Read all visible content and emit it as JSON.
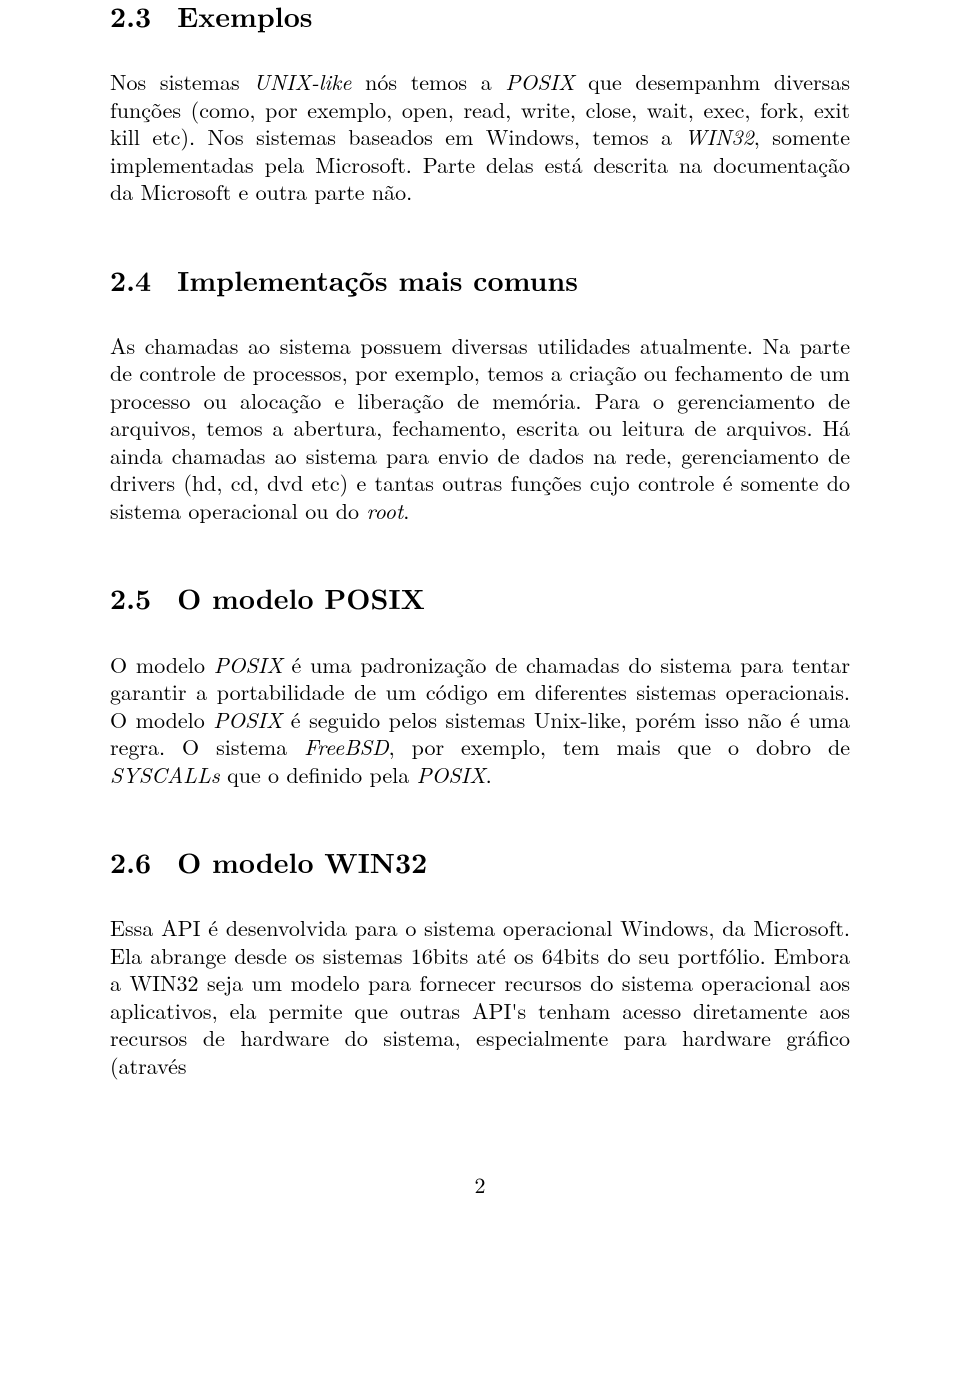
{
  "sections": {
    "s23": {
      "number": "2.3",
      "title": "Exemplos",
      "p1_a": "Nos sistemas ",
      "p1_i1": "UNIX-like",
      "p1_b": " nós temos a ",
      "p1_i2": "POSIX",
      "p1_c": " que desempanhm diversas funções (como, por exemplo, open, read, write, close, wait, exec, fork, exit kill etc). Nos sistemas baseados em Windows, temos a ",
      "p1_i3": "WIN32",
      "p1_d": ", somente implementadas pela Microsoft. Parte delas está descrita na documentação da Microsoft e outra parte não."
    },
    "s24": {
      "number": "2.4",
      "title": "Implementaçõs mais comuns",
      "p1_a": "As chamadas ao sistema possuem diversas utilidades atualmente. Na parte de controle de processos, por exemplo, temos a criação ou fechamento de um processo ou alocação e liberação de memória. Para o gerenciamento de arquivos, temos a abertura, fechamento, escrita ou leitura de arquivos. Há ainda chamadas ao sistema para envio de dados na rede, gerenciamento de drivers (hd, cd, dvd etc) e tantas outras funções cujo controle é somente do sistema operacional ou do ",
      "p1_i1": "root",
      "p1_b": "."
    },
    "s25": {
      "number": "2.5",
      "title": "O modelo POSIX",
      "p1_a": "O modelo ",
      "p1_i1": "POSIX",
      "p1_b": " é uma padronização de chamadas do sistema para tentar garantir a portabilidade de um código em diferentes sistemas operacionais. O modelo ",
      "p1_i2": "POSIX",
      "p1_c": " é seguido pelos sistemas Unix-like, porém isso não é uma regra. O sistema ",
      "p1_i3": "FreeBSD",
      "p1_d": ", por exemplo, tem mais que o dobro de ",
      "p1_i4": "SYSCALLs",
      "p1_e": " que o definido pela ",
      "p1_i5": "POSIX",
      "p1_f": "."
    },
    "s26": {
      "number": "2.6",
      "title": "O modelo WIN32",
      "p1_a": "Essa API é desenvolvida para o sistema operacional Windows, da Microsoft. Ela abrange desde os sistemas 16bits até os 64bits do seu portfólio. Embora a WIN32 seja um modelo para fornecer recursos do sistema operacional aos aplicativos, ela permite que outras API's tenham acesso diretamente aos recursos de hardware do sistema, especialmente para hardware gráfico (através"
    }
  },
  "page_number": "2"
}
